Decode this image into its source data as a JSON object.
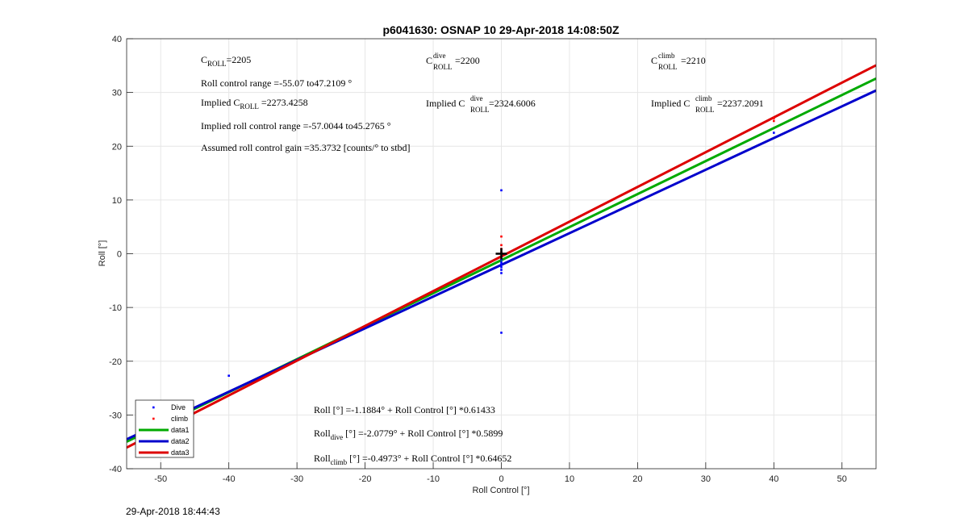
{
  "chart_data": {
    "type": "scatter",
    "title": "p6041630: OSNAP 10 29-Apr-2018 14:08:50Z",
    "xlabel": "Roll Control [°]",
    "ylabel": "Roll [°]",
    "xlim": [
      -55,
      55
    ],
    "ylim": [
      -40,
      40
    ],
    "xticks": [
      -50,
      -40,
      -30,
      -20,
      -10,
      0,
      10,
      20,
      30,
      40,
      50
    ],
    "yticks": [
      -40,
      -30,
      -20,
      -10,
      0,
      10,
      20,
      30,
      40
    ],
    "grid": true,
    "legend_position": "bottom-left",
    "series": [
      {
        "name": "Dive",
        "kind": "points",
        "color": "#0000ff",
        "points": [
          [
            -40,
            -22.7
          ],
          [
            0,
            11.8
          ],
          [
            0,
            -14.7
          ],
          [
            0,
            -3.6
          ],
          [
            0,
            -3.0
          ],
          [
            0,
            -2.5
          ],
          [
            0,
            -2.0
          ],
          [
            0,
            -1.6
          ],
          [
            0,
            -1.1
          ],
          [
            40,
            22.5
          ]
        ]
      },
      {
        "name": "climb",
        "kind": "points",
        "color": "#ff0000",
        "points": [
          [
            0,
            3.2
          ],
          [
            0,
            1.6
          ],
          [
            0,
            0.9
          ],
          [
            0,
            0.3
          ],
          [
            40,
            25.2
          ],
          [
            40,
            24.7
          ]
        ]
      },
      {
        "name": "data1",
        "kind": "line",
        "color": "#00aa00",
        "x": [
          -55,
          55
        ],
        "y": [
          -34.98,
          32.6
        ]
      },
      {
        "name": "data2",
        "kind": "line",
        "color": "#0000cc",
        "x": [
          -55,
          55
        ],
        "y": [
          -34.52,
          30.37
        ]
      },
      {
        "name": "data3",
        "kind": "line",
        "color": "#dd0000",
        "x": [
          -55,
          55
        ],
        "y": [
          -36.06,
          35.06
        ]
      }
    ],
    "marker_points": [
      [
        0,
        0
      ]
    ],
    "annotations": {
      "c_roll": {
        "main": "C",
        "sub": "ROLL",
        "value": "=2205"
      },
      "c_roll_dive": {
        "main": "C",
        "sup": "dive",
        "sub": "ROLL",
        "value": " =2200"
      },
      "c_roll_climb": {
        "main": "C",
        "sup": "climb",
        "sub": "ROLL",
        "value": " =2210"
      },
      "roll_range": "Roll control range =-55.07 to47.2109 °",
      "implied_c_roll": {
        "main": "Implied C",
        "sub": "ROLL",
        "value": " =2273.4258"
      },
      "implied_c_roll_dive": {
        "main": "Implied C",
        "sup": "dive",
        "sub": "ROLL",
        "value": "=2324.6006"
      },
      "implied_c_roll_climb": {
        "main": "Implied C",
        "sup": "climb",
        "sub": "ROLL",
        "value": " =2237.2091"
      },
      "implied_range": "Implied roll control range =-57.0044 to45.2765 °",
      "assumed_gain": "Assumed roll control gain =35.3732 [counts/° to stbd]",
      "fit_all": "Roll [°] =-1.1884° + Roll Control [°] *0.61433",
      "fit_dive": {
        "main": "Roll",
        "sub": "dive",
        "value": " [°] =-2.0779° + Roll Control [°] *0.5899"
      },
      "fit_climb": {
        "main": "Roll",
        "sub": "climb",
        "value": " [°] =-0.4973° + Roll Control [°] *0.64652"
      }
    }
  },
  "footer_timestamp": "29-Apr-2018 18:44:43"
}
